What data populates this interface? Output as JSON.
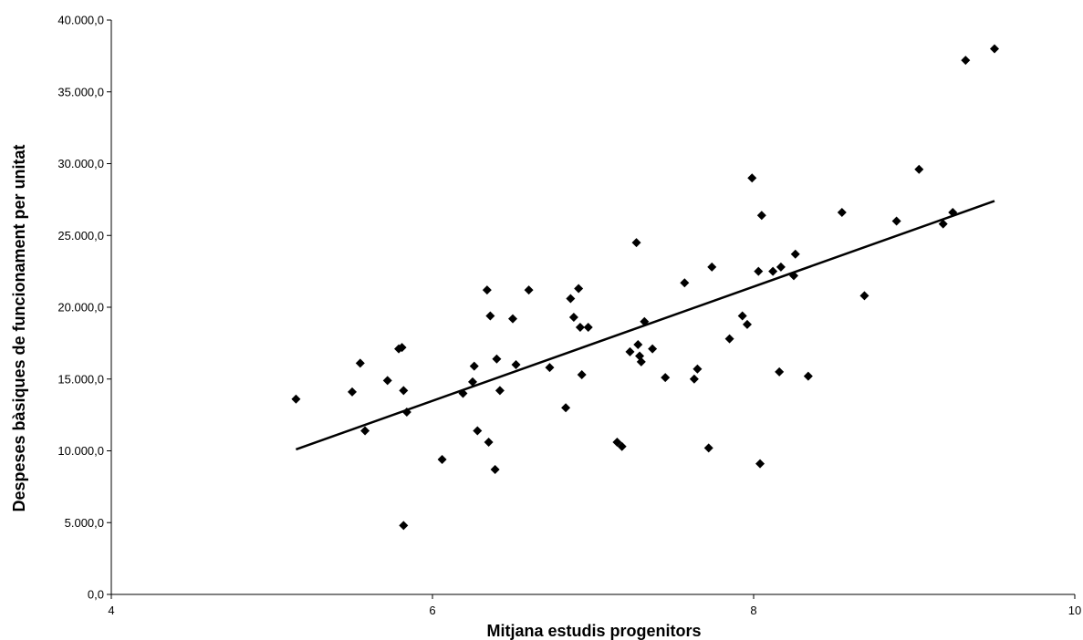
{
  "chart_data": {
    "type": "scatter",
    "title": "",
    "xlabel": "Mitjana estudis progenitors",
    "ylabel": "Despeses bàsiques de funcionament per unitat",
    "xlim": [
      4,
      10
    ],
    "ylim": [
      0,
      40000
    ],
    "x_ticks": [
      4,
      6,
      8,
      10
    ],
    "x_tick_labels": [
      "4",
      "6",
      "8",
      "10"
    ],
    "y_ticks": [
      0,
      5000,
      10000,
      15000,
      20000,
      25000,
      30000,
      35000,
      40000
    ],
    "y_tick_labels": [
      "0,0",
      "5.000,0",
      "10.000,0",
      "15.000,0",
      "20.000,0",
      "25.000,0",
      "30.000,0",
      "35.000,0",
      "40.000,0"
    ],
    "grid": false,
    "legend": "none",
    "marker": "diamond",
    "marker_color": "#000000",
    "points": [
      [
        5.15,
        13600
      ],
      [
        5.5,
        14100
      ],
      [
        5.55,
        16100
      ],
      [
        5.58,
        11400
      ],
      [
        5.72,
        14900
      ],
      [
        5.79,
        17100
      ],
      [
        5.81,
        17200
      ],
      [
        5.82,
        14200
      ],
      [
        5.82,
        4800
      ],
      [
        5.84,
        12700
      ],
      [
        6.06,
        9400
      ],
      [
        6.19,
        14000
      ],
      [
        6.25,
        14800
      ],
      [
        6.26,
        15900
      ],
      [
        6.28,
        11400
      ],
      [
        6.34,
        21200
      ],
      [
        6.35,
        10600
      ],
      [
        6.36,
        19400
      ],
      [
        6.39,
        8700
      ],
      [
        6.4,
        16400
      ],
      [
        6.42,
        14200
      ],
      [
        6.5,
        19200
      ],
      [
        6.52,
        16000
      ],
      [
        6.6,
        21200
      ],
      [
        6.73,
        15800
      ],
      [
        6.83,
        13000
      ],
      [
        6.86,
        20600
      ],
      [
        6.88,
        19300
      ],
      [
        6.91,
        21300
      ],
      [
        6.92,
        18600
      ],
      [
        6.93,
        15300
      ],
      [
        6.97,
        18600
      ],
      [
        7.15,
        10600
      ],
      [
        7.18,
        10300
      ],
      [
        7.23,
        16900
      ],
      [
        7.27,
        24500
      ],
      [
        7.28,
        17400
      ],
      [
        7.29,
        16600
      ],
      [
        7.3,
        16200
      ],
      [
        7.32,
        19000
      ],
      [
        7.37,
        17100
      ],
      [
        7.45,
        15100
      ],
      [
        7.57,
        21700
      ],
      [
        7.63,
        15000
      ],
      [
        7.65,
        15700
      ],
      [
        7.72,
        10200
      ],
      [
        7.74,
        22800
      ],
      [
        7.85,
        17800
      ],
      [
        7.93,
        19400
      ],
      [
        7.96,
        18800
      ],
      [
        7.99,
        29000
      ],
      [
        8.03,
        22500
      ],
      [
        8.04,
        9100
      ],
      [
        8.05,
        26400
      ],
      [
        8.12,
        22500
      ],
      [
        8.16,
        15500
      ],
      [
        8.17,
        22800
      ],
      [
        8.25,
        22200
      ],
      [
        8.26,
        23700
      ],
      [
        8.34,
        15200
      ],
      [
        8.55,
        26600
      ],
      [
        8.69,
        20800
      ],
      [
        8.89,
        26000
      ],
      [
        9.03,
        29600
      ],
      [
        9.18,
        25800
      ],
      [
        9.24,
        26600
      ],
      [
        9.32,
        37200
      ],
      [
        9.5,
        38000
      ]
    ],
    "trendline": {
      "x": [
        5.15,
        9.5
      ],
      "y": [
        10100,
        27400
      ]
    }
  }
}
